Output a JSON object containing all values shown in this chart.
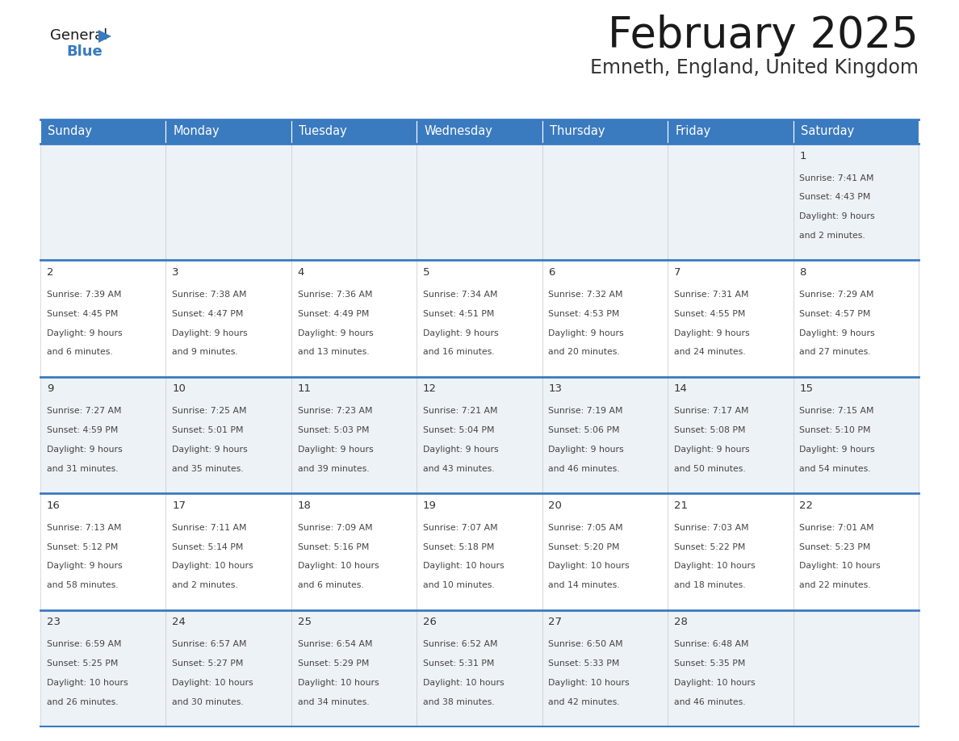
{
  "title": "February 2025",
  "subtitle": "Emneth, England, United Kingdom",
  "header_color": "#3a7abf",
  "header_text_color": "#ffffff",
  "cell_bg_light": "#edf2f7",
  "cell_bg_white": "#ffffff",
  "day_headers": [
    "Sunday",
    "Monday",
    "Tuesday",
    "Wednesday",
    "Thursday",
    "Friday",
    "Saturday"
  ],
  "days": [
    {
      "day": 1,
      "col": 6,
      "row": 0,
      "sunrise": "7:41 AM",
      "sunset": "4:43 PM",
      "daylight_h": "9 hours",
      "daylight_m": "and 2 minutes."
    },
    {
      "day": 2,
      "col": 0,
      "row": 1,
      "sunrise": "7:39 AM",
      "sunset": "4:45 PM",
      "daylight_h": "9 hours",
      "daylight_m": "and 6 minutes."
    },
    {
      "day": 3,
      "col": 1,
      "row": 1,
      "sunrise": "7:38 AM",
      "sunset": "4:47 PM",
      "daylight_h": "9 hours",
      "daylight_m": "and 9 minutes."
    },
    {
      "day": 4,
      "col": 2,
      "row": 1,
      "sunrise": "7:36 AM",
      "sunset": "4:49 PM",
      "daylight_h": "9 hours",
      "daylight_m": "and 13 minutes."
    },
    {
      "day": 5,
      "col": 3,
      "row": 1,
      "sunrise": "7:34 AM",
      "sunset": "4:51 PM",
      "daylight_h": "9 hours",
      "daylight_m": "and 16 minutes."
    },
    {
      "day": 6,
      "col": 4,
      "row": 1,
      "sunrise": "7:32 AM",
      "sunset": "4:53 PM",
      "daylight_h": "9 hours",
      "daylight_m": "and 20 minutes."
    },
    {
      "day": 7,
      "col": 5,
      "row": 1,
      "sunrise": "7:31 AM",
      "sunset": "4:55 PM",
      "daylight_h": "9 hours",
      "daylight_m": "and 24 minutes."
    },
    {
      "day": 8,
      "col": 6,
      "row": 1,
      "sunrise": "7:29 AM",
      "sunset": "4:57 PM",
      "daylight_h": "9 hours",
      "daylight_m": "and 27 minutes."
    },
    {
      "day": 9,
      "col": 0,
      "row": 2,
      "sunrise": "7:27 AM",
      "sunset": "4:59 PM",
      "daylight_h": "9 hours",
      "daylight_m": "and 31 minutes."
    },
    {
      "day": 10,
      "col": 1,
      "row": 2,
      "sunrise": "7:25 AM",
      "sunset": "5:01 PM",
      "daylight_h": "9 hours",
      "daylight_m": "and 35 minutes."
    },
    {
      "day": 11,
      "col": 2,
      "row": 2,
      "sunrise": "7:23 AM",
      "sunset": "5:03 PM",
      "daylight_h": "9 hours",
      "daylight_m": "and 39 minutes."
    },
    {
      "day": 12,
      "col": 3,
      "row": 2,
      "sunrise": "7:21 AM",
      "sunset": "5:04 PM",
      "daylight_h": "9 hours",
      "daylight_m": "and 43 minutes."
    },
    {
      "day": 13,
      "col": 4,
      "row": 2,
      "sunrise": "7:19 AM",
      "sunset": "5:06 PM",
      "daylight_h": "9 hours",
      "daylight_m": "and 46 minutes."
    },
    {
      "day": 14,
      "col": 5,
      "row": 2,
      "sunrise": "7:17 AM",
      "sunset": "5:08 PM",
      "daylight_h": "9 hours",
      "daylight_m": "and 50 minutes."
    },
    {
      "day": 15,
      "col": 6,
      "row": 2,
      "sunrise": "7:15 AM",
      "sunset": "5:10 PM",
      "daylight_h": "9 hours",
      "daylight_m": "and 54 minutes."
    },
    {
      "day": 16,
      "col": 0,
      "row": 3,
      "sunrise": "7:13 AM",
      "sunset": "5:12 PM",
      "daylight_h": "9 hours",
      "daylight_m": "and 58 minutes."
    },
    {
      "day": 17,
      "col": 1,
      "row": 3,
      "sunrise": "7:11 AM",
      "sunset": "5:14 PM",
      "daylight_h": "10 hours",
      "daylight_m": "and 2 minutes."
    },
    {
      "day": 18,
      "col": 2,
      "row": 3,
      "sunrise": "7:09 AM",
      "sunset": "5:16 PM",
      "daylight_h": "10 hours",
      "daylight_m": "and 6 minutes."
    },
    {
      "day": 19,
      "col": 3,
      "row": 3,
      "sunrise": "7:07 AM",
      "sunset": "5:18 PM",
      "daylight_h": "10 hours",
      "daylight_m": "and 10 minutes."
    },
    {
      "day": 20,
      "col": 4,
      "row": 3,
      "sunrise": "7:05 AM",
      "sunset": "5:20 PM",
      "daylight_h": "10 hours",
      "daylight_m": "and 14 minutes."
    },
    {
      "day": 21,
      "col": 5,
      "row": 3,
      "sunrise": "7:03 AM",
      "sunset": "5:22 PM",
      "daylight_h": "10 hours",
      "daylight_m": "and 18 minutes."
    },
    {
      "day": 22,
      "col": 6,
      "row": 3,
      "sunrise": "7:01 AM",
      "sunset": "5:23 PM",
      "daylight_h": "10 hours",
      "daylight_m": "and 22 minutes."
    },
    {
      "day": 23,
      "col": 0,
      "row": 4,
      "sunrise": "6:59 AM",
      "sunset": "5:25 PM",
      "daylight_h": "10 hours",
      "daylight_m": "and 26 minutes."
    },
    {
      "day": 24,
      "col": 1,
      "row": 4,
      "sunrise": "6:57 AM",
      "sunset": "5:27 PM",
      "daylight_h": "10 hours",
      "daylight_m": "and 30 minutes."
    },
    {
      "day": 25,
      "col": 2,
      "row": 4,
      "sunrise": "6:54 AM",
      "sunset": "5:29 PM",
      "daylight_h": "10 hours",
      "daylight_m": "and 34 minutes."
    },
    {
      "day": 26,
      "col": 3,
      "row": 4,
      "sunrise": "6:52 AM",
      "sunset": "5:31 PM",
      "daylight_h": "10 hours",
      "daylight_m": "and 38 minutes."
    },
    {
      "day": 27,
      "col": 4,
      "row": 4,
      "sunrise": "6:50 AM",
      "sunset": "5:33 PM",
      "daylight_h": "10 hours",
      "daylight_m": "and 42 minutes."
    },
    {
      "day": 28,
      "col": 5,
      "row": 4,
      "sunrise": "6:48 AM",
      "sunset": "5:35 PM",
      "daylight_h": "10 hours",
      "daylight_m": "and 46 minutes."
    }
  ],
  "num_rows": 5,
  "num_cols": 7,
  "title_color": "#1a1a1a",
  "subtitle_color": "#333333",
  "cell_text_color": "#444444",
  "day_number_color": "#333333",
  "border_color": "#3a7abf",
  "logo_color_general": "#1a1a1a",
  "logo_color_blue": "#3a7abf",
  "logo_triangle_color": "#3a7abf"
}
